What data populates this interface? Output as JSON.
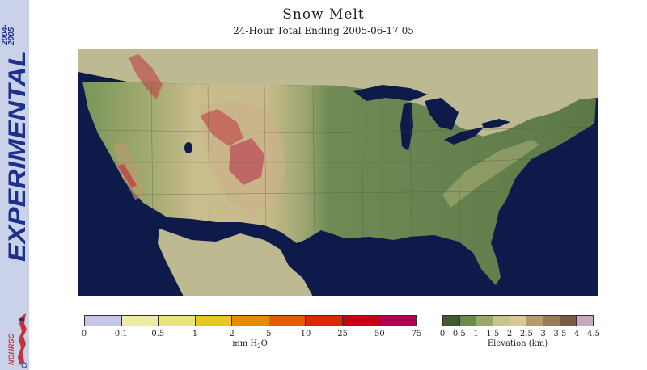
{
  "sidebar": {
    "year_top": "2004-",
    "year_bottom": "2005",
    "banner": "EXPERIMENTAL",
    "logo_text": "NOHRSC",
    "banner_color": "#1e2f8c",
    "background": "#c9d2e8"
  },
  "header": {
    "title": "Snow Melt",
    "subtitle": "24-Hour Total Ending 2005-06-17 05"
  },
  "map": {
    "ocean_color": "#0e1a4a",
    "foreign_land_color": "#bdb993",
    "lowland_color": "#5e7a49",
    "upland_color": "#c7ba8b",
    "snow_melt_color": "#c0353a"
  },
  "legends": {
    "snow_melt": {
      "ticks": [
        "0",
        "0.1",
        "0.5",
        "1",
        "2",
        "5",
        "10",
        "25",
        "50",
        "75"
      ],
      "colors": [
        "#c5c5e6",
        "#ececa8",
        "#e6e67a",
        "#e6c81e",
        "#e68a00",
        "#e65a00",
        "#dc2800",
        "#c80014",
        "#b40050"
      ],
      "unit_prefix": "mm H",
      "unit_sub": "2",
      "unit_suffix": "O"
    },
    "elevation": {
      "ticks": [
        "0",
        "0.5",
        "1",
        "1.5",
        "2",
        "2.5",
        "3",
        "3.5",
        "4",
        "4.5"
      ],
      "colors": [
        "#3f5a2f",
        "#6b8a50",
        "#9aa86a",
        "#c8c48a",
        "#d8c89a",
        "#b89a70",
        "#9c7c56",
        "#7a5a40",
        "#c8a8c0"
      ],
      "caption": "Elevation (km)"
    }
  }
}
